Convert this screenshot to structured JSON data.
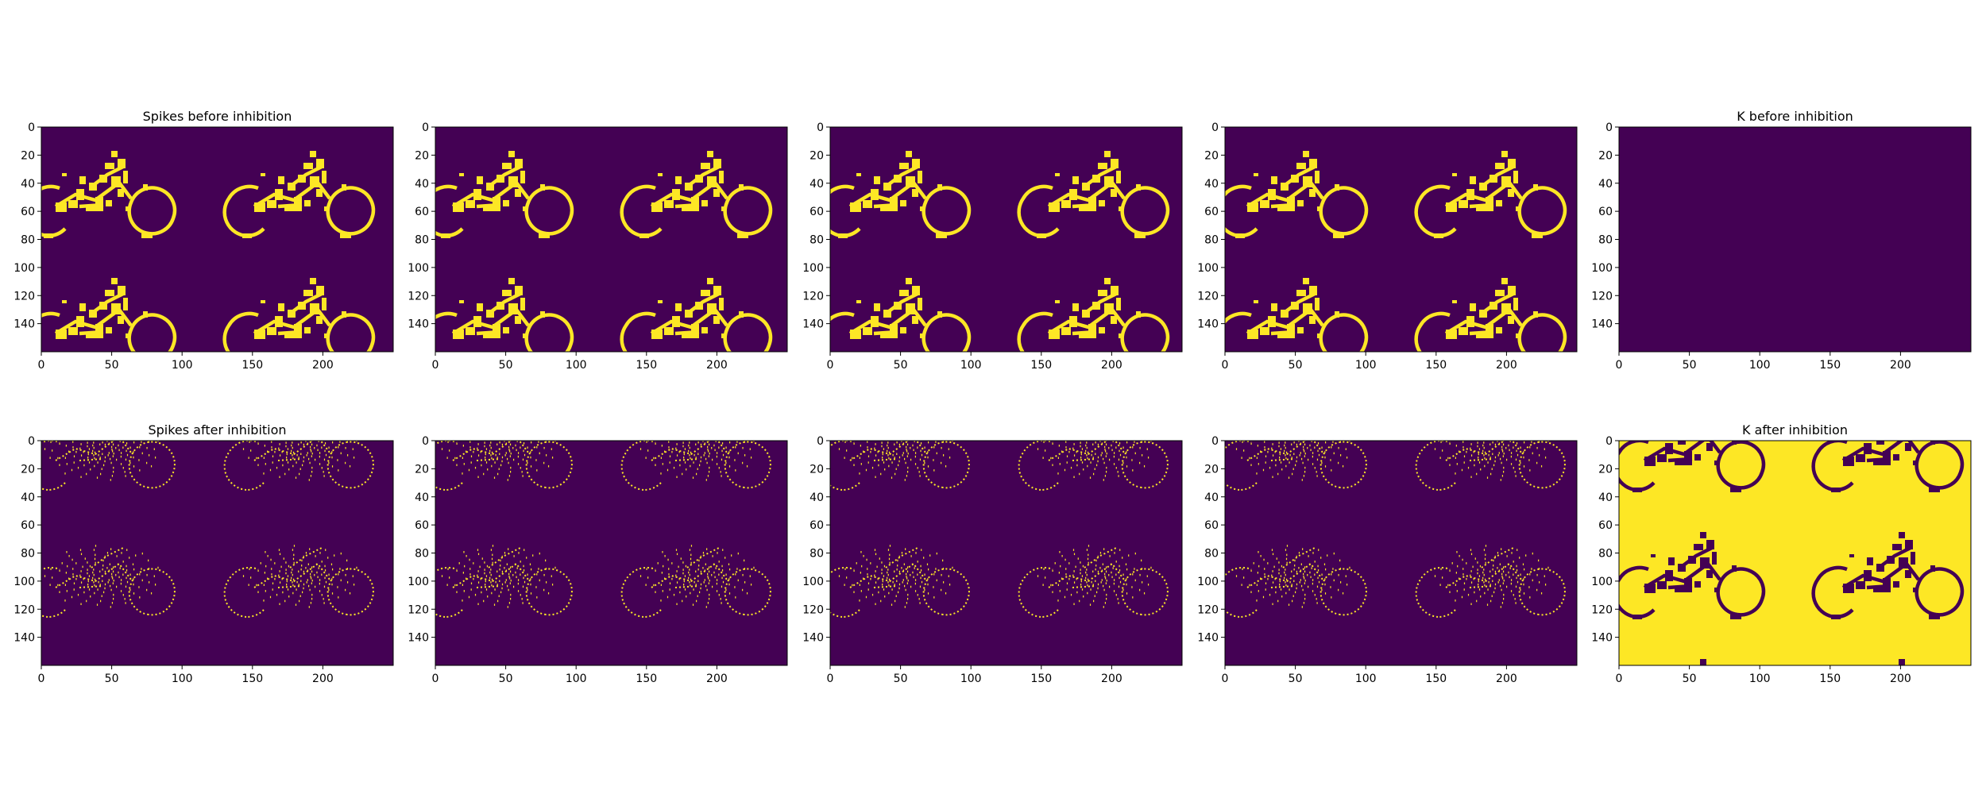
{
  "colors": {
    "low": "#440154",
    "high": "#fde725",
    "axis": "#000000",
    "background": "#ffffff"
  },
  "chart_data": [
    {
      "type": "heatmap",
      "row": 1,
      "col": 1,
      "title": "Spikes before inhibition",
      "map": "spikes_before",
      "xlim": [
        0,
        250
      ],
      "ylim": [
        160,
        0
      ],
      "xticks": [
        "0",
        "50",
        "100",
        "150",
        "200"
      ],
      "yticks": [
        "0",
        "20",
        "40",
        "60",
        "80",
        "100",
        "120",
        "140"
      ],
      "grid": false,
      "legend": "none"
    },
    {
      "type": "heatmap",
      "row": 1,
      "col": 2,
      "title": "",
      "map": "spikes_before",
      "xlim": [
        0,
        250
      ],
      "ylim": [
        160,
        0
      ],
      "xticks": [
        "0",
        "50",
        "100",
        "150",
        "200"
      ],
      "yticks": [
        "0",
        "20",
        "40",
        "60",
        "80",
        "100",
        "120",
        "140"
      ],
      "grid": false,
      "legend": "none"
    },
    {
      "type": "heatmap",
      "row": 1,
      "col": 3,
      "title": "",
      "map": "spikes_before",
      "xlim": [
        0,
        250
      ],
      "ylim": [
        160,
        0
      ],
      "xticks": [
        "0",
        "50",
        "100",
        "150",
        "200"
      ],
      "yticks": [
        "0",
        "20",
        "40",
        "60",
        "80",
        "100",
        "120",
        "140"
      ],
      "grid": false,
      "legend": "none"
    },
    {
      "type": "heatmap",
      "row": 1,
      "col": 4,
      "title": "",
      "map": "spikes_before",
      "xlim": [
        0,
        250
      ],
      "ylim": [
        160,
        0
      ],
      "xticks": [
        "0",
        "50",
        "100",
        "150",
        "200"
      ],
      "yticks": [
        "0",
        "20",
        "40",
        "60",
        "80",
        "100",
        "120",
        "140"
      ],
      "grid": false,
      "legend": "none"
    },
    {
      "type": "heatmap",
      "row": 1,
      "col": 5,
      "title": "K before inhibition",
      "map": "empty",
      "xlim": [
        0,
        250
      ],
      "ylim": [
        160,
        0
      ],
      "xticks": [
        "0",
        "50",
        "100",
        "150",
        "200"
      ],
      "yticks": [
        "0",
        "20",
        "40",
        "60",
        "80",
        "100",
        "120",
        "140"
      ],
      "grid": false,
      "legend": "none"
    },
    {
      "type": "heatmap",
      "row": 2,
      "col": 1,
      "title": "Spikes after inhibition",
      "map": "spikes_after",
      "xlim": [
        0,
        250
      ],
      "ylim": [
        160,
        0
      ],
      "xticks": [
        "0",
        "50",
        "100",
        "150",
        "200"
      ],
      "yticks": [
        "0",
        "20",
        "40",
        "60",
        "80",
        "100",
        "120",
        "140"
      ],
      "grid": false,
      "legend": "none"
    },
    {
      "type": "heatmap",
      "row": 2,
      "col": 2,
      "title": "",
      "map": "spikes_after",
      "xlim": [
        0,
        250
      ],
      "ylim": [
        160,
        0
      ],
      "xticks": [
        "0",
        "50",
        "100",
        "150",
        "200"
      ],
      "yticks": [
        "0",
        "20",
        "40",
        "60",
        "80",
        "100",
        "120",
        "140"
      ],
      "grid": false,
      "legend": "none"
    },
    {
      "type": "heatmap",
      "row": 2,
      "col": 3,
      "title": "",
      "map": "spikes_after",
      "xlim": [
        0,
        250
      ],
      "ylim": [
        160,
        0
      ],
      "xticks": [
        "0",
        "50",
        "100",
        "150",
        "200"
      ],
      "yticks": [
        "0",
        "20",
        "40",
        "60",
        "80",
        "100",
        "120",
        "140"
      ],
      "grid": false,
      "legend": "none"
    },
    {
      "type": "heatmap",
      "row": 2,
      "col": 4,
      "title": "",
      "map": "spikes_after",
      "xlim": [
        0,
        250
      ],
      "ylim": [
        160,
        0
      ],
      "xticks": [
        "0",
        "50",
        "100",
        "150",
        "200"
      ],
      "yticks": [
        "0",
        "20",
        "40",
        "60",
        "80",
        "100",
        "120",
        "140"
      ],
      "grid": false,
      "legend": "none"
    },
    {
      "type": "heatmap",
      "row": 2,
      "col": 5,
      "title": "K after inhibition",
      "map": "k_after",
      "xlim": [
        0,
        250
      ],
      "ylim": [
        160,
        0
      ],
      "xticks": [
        "0",
        "50",
        "100",
        "150",
        "200"
      ],
      "yticks": [
        "0",
        "20",
        "40",
        "60",
        "80",
        "100",
        "120",
        "140"
      ],
      "grid": false,
      "legend": "none"
    }
  ]
}
